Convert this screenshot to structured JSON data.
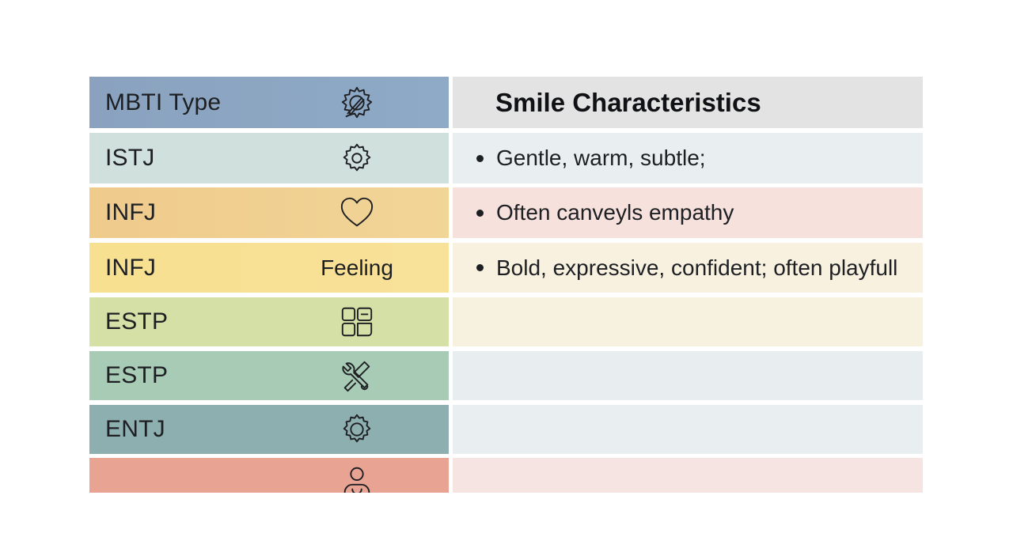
{
  "header": {
    "type_label": "MBTI Type",
    "type_icon": "gear-brush-icon",
    "characteristics_title": "Smile Characteristics"
  },
  "rows": [
    {
      "type": "ISTJ",
      "icon": "gear-icon",
      "extra": "",
      "bullet": "Gentle, warm, subtle;"
    },
    {
      "type": "INFJ",
      "icon": "heart-icon",
      "extra": "",
      "bullet": "Often canveyls empathy"
    },
    {
      "type": "INFJ",
      "icon": "",
      "extra": "Feeling",
      "bullet": "Bold, expressive, confident; often playfull"
    },
    {
      "type": "ESTP",
      "icon": "puzzle-blocks-icon",
      "extra": "",
      "bullet": ""
    },
    {
      "type": "ESTP",
      "icon": "tools-icon",
      "extra": "",
      "bullet": ""
    },
    {
      "type": "ENTJ",
      "icon": "gear-icon",
      "extra": "",
      "bullet": ""
    },
    {
      "type": "",
      "icon": "person-icon",
      "extra": "",
      "bullet": ""
    }
  ],
  "colors": {
    "header_left": "#8aa6c4",
    "header_right": "#e2e2e2",
    "row_left": [
      "#cfe0dd",
      "#efcf8f",
      "#f8df8f",
      "#d5e0a6",
      "#a9ccb6",
      "#8fb0b1",
      "#e8a394"
    ],
    "row_right": [
      "#e9eff0",
      "#f6e1dd",
      "#f8f1e0",
      "#f7f2df",
      "#e8eef0",
      "#e9eef0",
      "#f6e4e2"
    ]
  }
}
